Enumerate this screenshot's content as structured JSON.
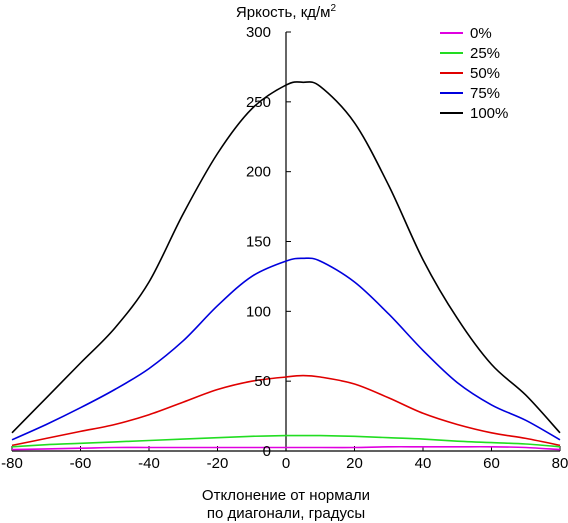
{
  "chart_data": {
    "type": "line",
    "title": "",
    "ylabel": "Яркость, кд/м",
    "ylabel_sup": "2",
    "xlabel": [
      "Отклонение от нормали",
      "по диагонали, градусы"
    ],
    "xlim": [
      -80,
      80
    ],
    "ylim": [
      0,
      300
    ],
    "xticks": [
      "-80",
      "-60",
      "-40",
      "-20",
      "0",
      "20",
      "40",
      "60",
      "80"
    ],
    "yticks": [
      "0",
      "50",
      "100",
      "150",
      "200",
      "250",
      "300"
    ],
    "grid": false,
    "legend_position": "top-right",
    "x": [
      -80,
      -70,
      -60,
      -50,
      -40,
      -30,
      -20,
      -10,
      0,
      5,
      10,
      20,
      30,
      40,
      50,
      60,
      70,
      80
    ],
    "series": [
      {
        "name": "0%",
        "color": "#e000e0",
        "values": [
          1,
          1.5,
          2,
          2.5,
          2.5,
          2.5,
          2.5,
          2.5,
          2.5,
          2.5,
          2.5,
          2.5,
          3,
          3,
          3,
          3,
          2.5,
          1
        ]
      },
      {
        "name": "25%",
        "color": "#22dd22",
        "values": [
          3,
          4.5,
          5.5,
          6.5,
          7.5,
          8.5,
          9.5,
          10.5,
          11,
          11,
          11,
          10.5,
          9.5,
          8.5,
          7,
          6,
          5,
          3
        ]
      },
      {
        "name": "50%",
        "color": "#e00000",
        "values": [
          4,
          9,
          14,
          19,
          26,
          35,
          44,
          50,
          53,
          54,
          53,
          48,
          38,
          27,
          19,
          13,
          9,
          4
        ]
      },
      {
        "name": "75%",
        "color": "#0000dd",
        "values": [
          8,
          19,
          31,
          44,
          59,
          79,
          104,
          125,
          136,
          138,
          136,
          121,
          98,
          72,
          49,
          33,
          22,
          8
        ]
      },
      {
        "name": "100%",
        "color": "#000000",
        "values": [
          13,
          38,
          63,
          88,
          121,
          170,
          213,
          245,
          262,
          264,
          261,
          235,
          190,
          137,
          95,
          62,
          40,
          13
        ]
      }
    ]
  }
}
